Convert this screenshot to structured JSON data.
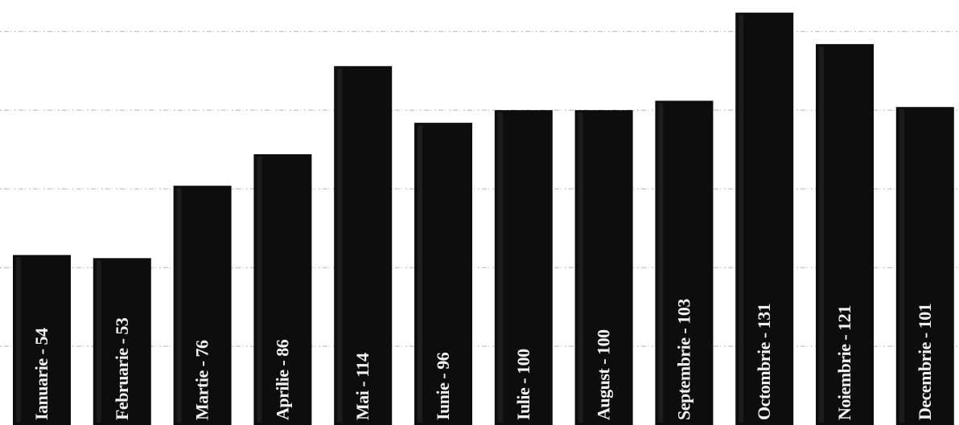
{
  "chart_data": {
    "type": "bar",
    "orientation": "vertical",
    "grid": true,
    "bar_color": "#0d0d0d",
    "ylim": [
      0,
      135
    ],
    "categories": [
      "Ianuarie",
      "Februarie",
      "Martie",
      "Aprilie",
      "Mai",
      "Iunie",
      "Iulie",
      "August",
      "Septembrie",
      "Octombrie",
      "Noiembrie",
      "Decembrie"
    ],
    "values": [
      54,
      53,
      76,
      86,
      114,
      96,
      100,
      100,
      103,
      131,
      121,
      101
    ],
    "data_labels": [
      "Ianuarie - 54",
      "Februarie - 53",
      "Martie - 76",
      "Aprilie - 86",
      "Mai - 114",
      "Iunie - 96",
      "Iulie - 100",
      "August - 100",
      "Septembrie - 103",
      "Octombrie - 131",
      "Noiembrie - 121",
      "Decembrie - 101"
    ]
  }
}
